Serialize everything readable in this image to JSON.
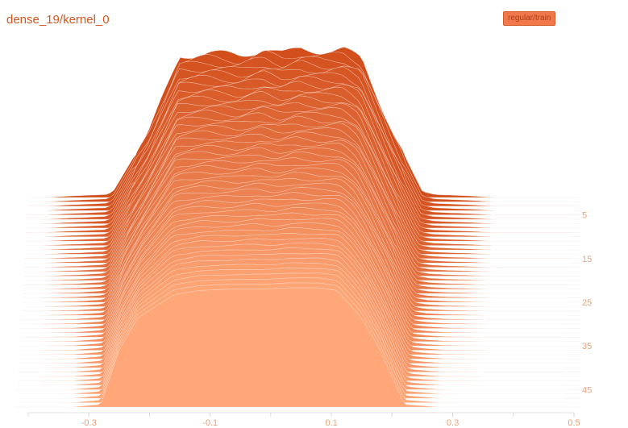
{
  "chart_data": {
    "type": "area",
    "title": "dense_19/kernel_0",
    "legend": {
      "label": "regular/train",
      "placement": "top-right",
      "color": "#f0784a"
    },
    "series_color_newest": "#d24f1c",
    "series_color_oldest": "#ffa778",
    "x_ticks": [
      -0.3,
      -0.1,
      0.1,
      0.3,
      0.5
    ],
    "xlim": [
      -0.4,
      0.5
    ],
    "y_ticks": [
      5,
      15,
      25,
      35,
      45
    ],
    "ylim": [
      0,
      49
    ],
    "steps": 49,
    "grid": false,
    "front_profile": [
      [
        -0.31,
        0
      ],
      [
        -0.26,
        0.02
      ],
      [
        -0.23,
        0.42
      ],
      [
        -0.2,
        0.65
      ],
      [
        -0.14,
        0.82
      ],
      [
        -0.1,
        0.85
      ],
      [
        -0.05,
        0.86
      ],
      [
        0,
        0.86
      ],
      [
        0.05,
        0.87
      ],
      [
        0.1,
        0.87
      ],
      [
        0.13,
        0.85
      ],
      [
        0.17,
        0.65
      ],
      [
        0.2,
        0.42
      ],
      [
        0.24,
        0.02
      ],
      [
        0.3,
        0
      ]
    ],
    "back_profile": [
      [
        -0.37,
        0
      ],
      [
        -0.33,
        0.01
      ],
      [
        -0.27,
        0.02
      ],
      [
        -0.26,
        0.04
      ],
      [
        -0.2,
        0.45
      ],
      [
        -0.15,
        0.95
      ],
      [
        -0.1,
        0.97
      ],
      [
        -0.05,
        0.95
      ],
      [
        -0.01,
        1.0
      ],
      [
        0.02,
        0.96
      ],
      [
        0.05,
        1.0
      ],
      [
        0.09,
        0.98
      ],
      [
        0.12,
        0.99
      ],
      [
        0.15,
        0.93
      ],
      [
        0.2,
        0.45
      ],
      [
        0.25,
        0.04
      ],
      [
        0.27,
        0.02
      ],
      [
        0.33,
        0.01
      ],
      [
        0.37,
        0
      ]
    ]
  }
}
